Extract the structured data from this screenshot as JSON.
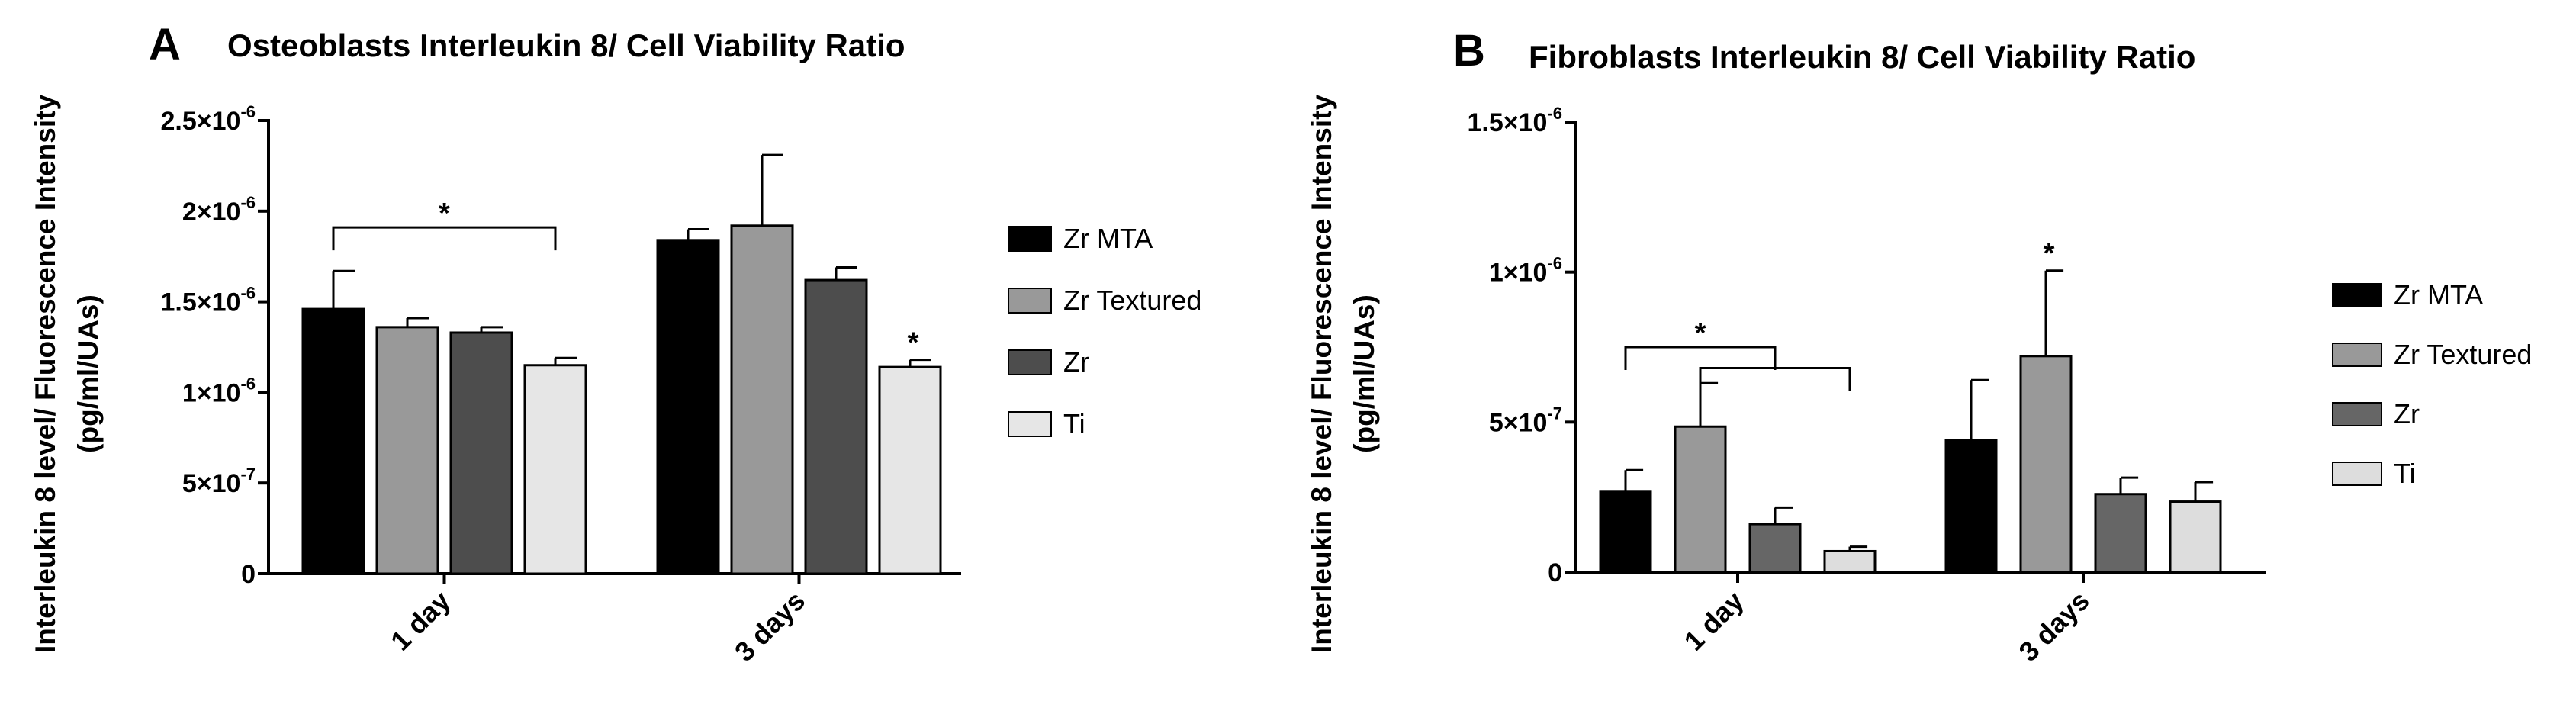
{
  "chart_data": [
    {
      "type": "bar",
      "panel": "A",
      "title": "Osteoblasts Interleukin 8/ Cell Viability Ratio",
      "ylabel_lines": [
        "Interleukin 8 level/ Fluorescence Intensity",
        "(pg/ml/UAs)"
      ],
      "categories": [
        "1 day",
        "3 days"
      ],
      "ylim": [
        0,
        2.5e-06
      ],
      "yticks": [
        {
          "value": 0,
          "base": "0",
          "exp": ""
        },
        {
          "value": 5e-07,
          "base": "5×10",
          "exp": "-7"
        },
        {
          "value": 1e-06,
          "base": "1×10",
          "exp": "-6"
        },
        {
          "value": 1.5e-06,
          "base": "1.5×10",
          "exp": "-6"
        },
        {
          "value": 2e-06,
          "base": "2×10",
          "exp": "-6"
        },
        {
          "value": 2.5e-06,
          "base": "2.5×10",
          "exp": "-6"
        }
      ],
      "series": [
        {
          "name": "Zr MTA",
          "color": "#000000",
          "values": [
            1.46e-06,
            1.84e-06
          ],
          "errors": [
            2.1e-07,
            6e-08
          ]
        },
        {
          "name": "Zr Textured",
          "color": "#999999",
          "values": [
            1.36e-06,
            1.92e-06
          ],
          "errors": [
            5e-08,
            3.9e-07
          ]
        },
        {
          "name": "Zr",
          "color": "#4d4d4d",
          "values": [
            1.33e-06,
            1.62e-06
          ],
          "errors": [
            3e-08,
            7e-08
          ]
        },
        {
          "name": "Ti",
          "color": "#e6e6e6",
          "values": [
            1.15e-06,
            1.14e-06
          ],
          "errors": [
            4e-08,
            4e-08
          ]
        }
      ],
      "significance": [
        {
          "type": "bracket",
          "from": [
            0,
            0
          ],
          "to": [
            0,
            3
          ],
          "level": 1.91e-06,
          "label": "*"
        },
        {
          "type": "star",
          "at": [
            1,
            3
          ],
          "label": "*"
        }
      ],
      "legend_position": "right"
    },
    {
      "type": "bar",
      "panel": "B",
      "title": "Fibroblasts Interleukin 8/ Cell Viability Ratio",
      "ylabel_lines": [
        "Interleukin 8 level/ Fluorescence Intensity",
        "(pg/ml/UAs)"
      ],
      "categories": [
        "1 day",
        "3 days"
      ],
      "ylim": [
        0,
        1.5e-06
      ],
      "yticks": [
        {
          "value": 0,
          "base": "0",
          "exp": ""
        },
        {
          "value": 5e-07,
          "base": "5×10",
          "exp": "-7"
        },
        {
          "value": 1e-06,
          "base": "1×10",
          "exp": "-6"
        },
        {
          "value": 1.5e-06,
          "base": "1.5×10",
          "exp": "-6"
        }
      ],
      "series": [
        {
          "name": "Zr MTA",
          "color": "#000000",
          "values": [
            2.7e-07,
            4.4e-07
          ],
          "errors": [
            7e-08,
            2e-07
          ]
        },
        {
          "name": "Zr Textured",
          "color": "#999999",
          "values": [
            4.85e-07,
            7.2e-07
          ],
          "errors": [
            1.45e-07,
            2.85e-07
          ]
        },
        {
          "name": "Zr",
          "color": "#666666",
          "values": [
            1.6e-07,
            2.6e-07
          ],
          "errors": [
            5.5e-08,
            5.5e-08
          ]
        },
        {
          "name": "Ti",
          "color": "#dddddd",
          "values": [
            7e-08,
            2.35e-07
          ],
          "errors": [
            1.5e-08,
            6.5e-08
          ]
        }
      ],
      "significance": [
        {
          "type": "bracket",
          "from": [
            0,
            1
          ],
          "to": [
            0,
            3
          ],
          "level": 6.8e-07,
          "label": ""
        },
        {
          "type": "bracket",
          "from": [
            0,
            0
          ],
          "to": [
            0,
            2
          ],
          "level": 7.5e-07,
          "label": "*"
        },
        {
          "type": "star",
          "at": [
            1,
            1
          ],
          "label": "*"
        }
      ],
      "legend_position": "right"
    }
  ]
}
